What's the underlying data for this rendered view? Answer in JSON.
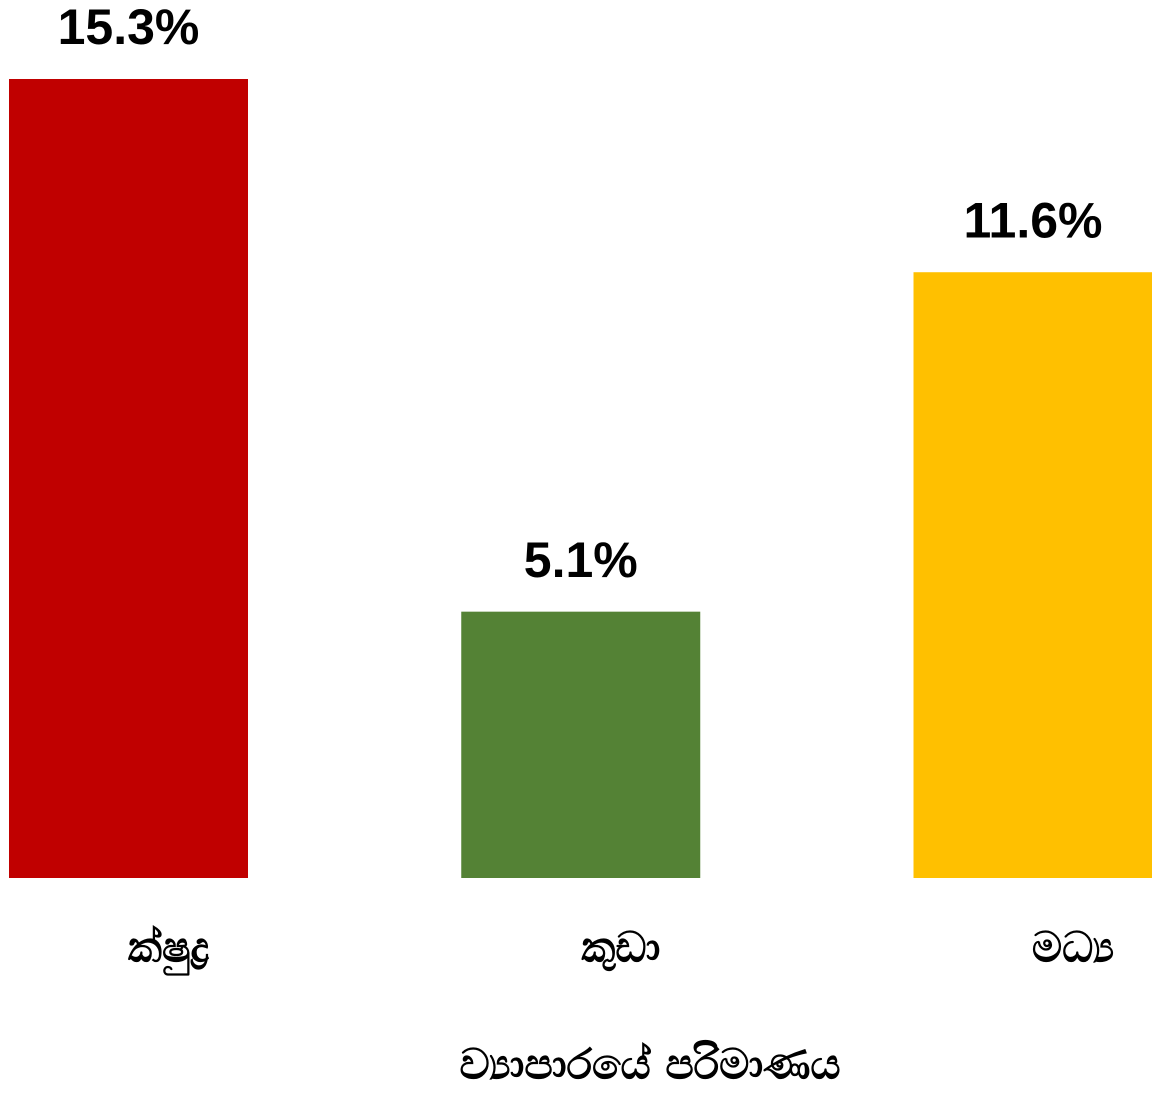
{
  "chart_data": {
    "type": "bar",
    "x_label": "ව්‍යාපාරයේ පරිමාණය",
    "categories": [
      "ක්ෂුද්‍ර",
      "කුඩා",
      "මධ්‍ය"
    ],
    "values": [
      15.3,
      5.1,
      11.6
    ],
    "value_labels": [
      "15.3%",
      "5.1%",
      "11.6%"
    ],
    "colors": [
      "#c00000",
      "#548235",
      "#ffc000"
    ],
    "ylim": [
      0,
      15.3
    ]
  }
}
